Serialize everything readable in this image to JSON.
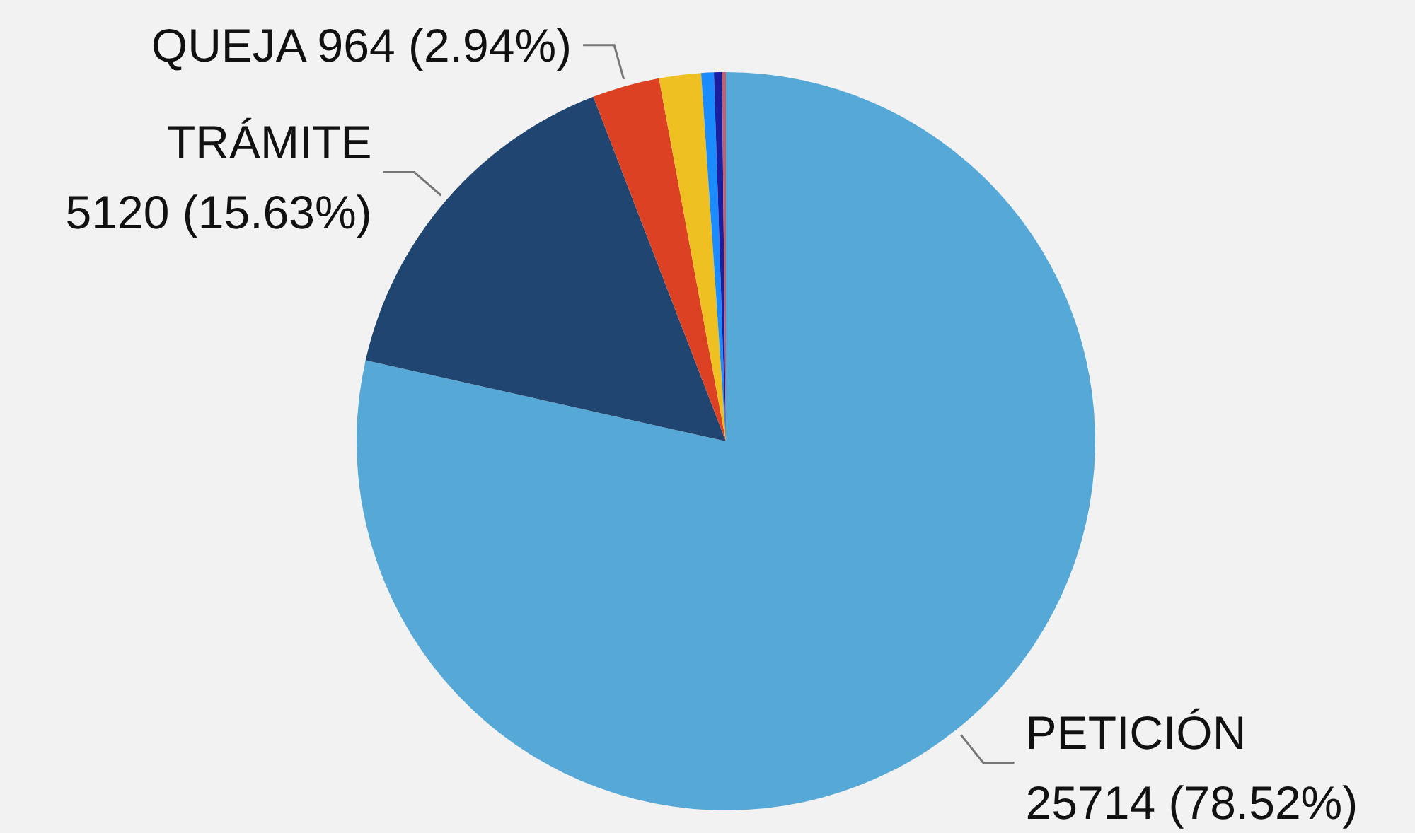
{
  "chart_data": {
    "type": "pie",
    "categories": [
      "PETICIÓN",
      "TRÁMITE",
      "QUEJA",
      null,
      null,
      null,
      null
    ],
    "values": [
      25714,
      5120,
      964,
      600,
      180,
      115,
      55
    ],
    "colors": [
      "#56a9d6",
      "#204570",
      "#dc4124",
      "#efc021",
      "#1a8cff",
      "#1a1fa0",
      "#c06070"
    ],
    "value_labels": [
      "25714 (78.52%)",
      "5120 (15.63%)",
      "964 (2.94%)",
      null,
      null,
      null,
      null
    ]
  }
}
